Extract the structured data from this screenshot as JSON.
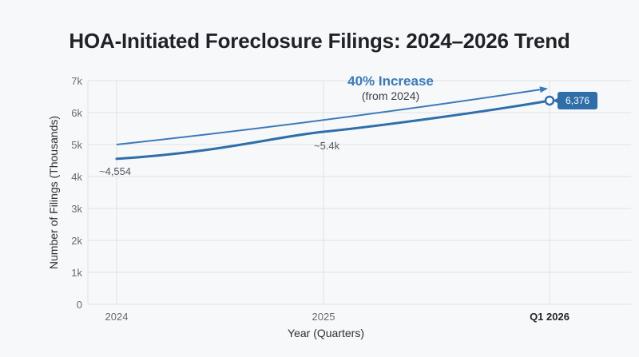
{
  "chart_data": {
    "type": "line",
    "title": "HOA-Initiated Foreclosure Filings: 2024–2026 Trend",
    "xlabel": "Year (Quarters)",
    "ylabel": "Number of Filings (Thousands)",
    "categories": [
      "2024",
      "2025",
      "Q1 2026"
    ],
    "x": [
      0,
      1,
      2
    ],
    "ylim": [
      0,
      7000
    ],
    "yticks": [
      0,
      1000,
      2000,
      3000,
      4000,
      5000,
      6000,
      7000
    ],
    "ytick_labels": [
      "0",
      "1k",
      "2k",
      "3k",
      "4k",
      "5k",
      "6k",
      "7k"
    ],
    "grid": true,
    "series": [
      {
        "values": [
          4554,
          5400,
          6376
        ],
        "color": "#2f6ea9"
      }
    ],
    "trend_arrow": {
      "from": [
        0,
        5000
      ],
      "to": [
        2,
        6750
      ],
      "color": "#3b7ab8"
    },
    "annotations": {
      "start_label": "~4,554",
      "mid_label": "~5.4k",
      "end_label": "6,376",
      "increase_title": "40% Increase",
      "increase_sub": "(from 2024)"
    },
    "colors": {
      "line": "#2f6ea9",
      "arrow": "#3b7ab8",
      "badge": "#2f6ea9",
      "grid": "#dfe2e6"
    }
  }
}
